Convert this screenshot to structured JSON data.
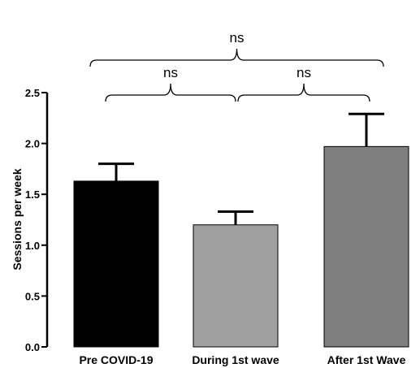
{
  "chart_data": {
    "type": "bar",
    "categories": [
      "Pre COVID-19",
      "During 1st wave",
      "After 1st Wave"
    ],
    "values": [
      1.63,
      1.2,
      1.97
    ],
    "errors": [
      0.17,
      0.13,
      0.32
    ],
    "colors": [
      "#000000",
      "#a0a0a0",
      "#7f7f7f"
    ],
    "ylabel": "Sessions per week",
    "xlabel": "",
    "title": "",
    "ylim": [
      0,
      2.5
    ],
    "yticks": [
      "0.0",
      "0.5",
      "1.0",
      "1.5",
      "2.0",
      "2.5"
    ],
    "grid": false,
    "significance": [
      {
        "from": 0,
        "to": 1,
        "label": "ns"
      },
      {
        "from": 1,
        "to": 2,
        "label": "ns"
      },
      {
        "from": 0,
        "to": 2,
        "label": "ns"
      }
    ]
  }
}
